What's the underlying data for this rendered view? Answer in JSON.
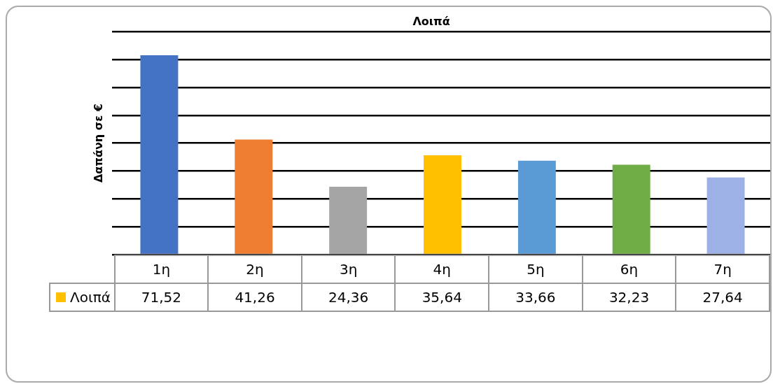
{
  "chart_data": {
    "type": "bar",
    "title": "Λοιπά",
    "ylabel": "Δαπάνη σε €",
    "categories": [
      "1η",
      "2η",
      "3η",
      "4η",
      "5η",
      "6η",
      "7η"
    ],
    "series": [
      {
        "name": "Λοιπά",
        "color": "#ffc000",
        "colors": [
          "#4472c4",
          "#ed7d31",
          "#a5a5a5",
          "#ffc000",
          "#5b9bd5",
          "#70ad47",
          "#9eb1e6"
        ],
        "values": [
          71.52,
          41.26,
          24.36,
          35.64,
          33.66,
          32.23,
          27.64
        ],
        "value_labels": [
          "71,52",
          "41,26",
          "24,36",
          "35,64",
          "33,66",
          "32,23",
          "27,64"
        ]
      }
    ],
    "ylim": [
      0,
      80
    ],
    "yticks": [
      0,
      {
        "value": 10,
        "label": null
      },
      {
        "value": 20,
        "label": null
      },
      {
        "value": 30,
        "label": null
      },
      {
        "value": 40,
        "label": null
      },
      {
        "value": 50,
        "label": null
      },
      {
        "value": 60,
        "label": null
      },
      {
        "value": 70,
        "label": null
      },
      {
        "value": 80,
        "label": null
      }
    ],
    "grid": "y",
    "tick_labels": "x",
    "legend": "bottom left"
  }
}
